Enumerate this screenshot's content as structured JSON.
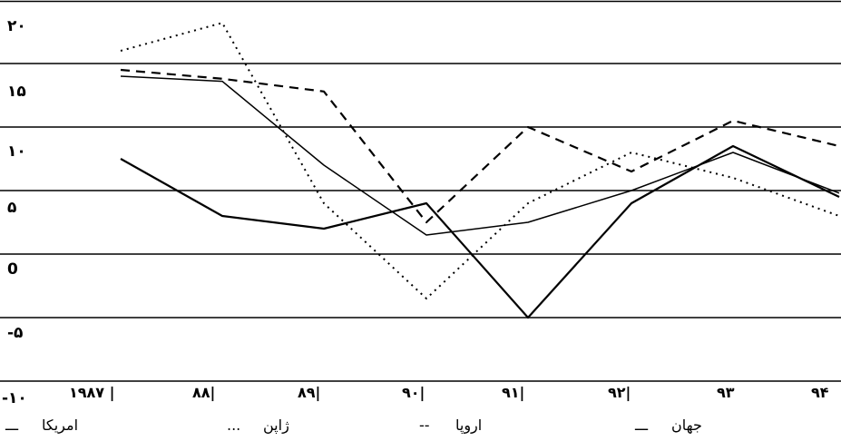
{
  "chart_data": {
    "type": "line",
    "title": "",
    "xlabel": "",
    "ylabel": "",
    "ylim": [
      -10,
      20
    ],
    "grid": "horizontal",
    "legend_position": "bottom",
    "x_tick_labels": [
      "۱۹۸۷ |",
      "۸۸|",
      "۸۹|",
      "۹۰|",
      "۹۱|",
      "۹۲|",
      "۹۳",
      "۹۴"
    ],
    "y_tick_labels": [
      {
        "value": 20,
        "label": "۲۰"
      },
      {
        "value": 15,
        "label": "۱۵"
      },
      {
        "value": 10,
        "label": "۱۰"
      },
      {
        "value": 5,
        "label": "۵"
      },
      {
        "value": 0,
        "label": "0"
      },
      {
        "value": -5,
        "label": "-۵"
      },
      {
        "value": -10,
        "label": "-۱۰"
      }
    ],
    "x": [
      1987,
      1988,
      1989,
      1990,
      1991,
      1992,
      1993,
      1994
    ],
    "series": [
      {
        "name": "جهان",
        "dash": "solid",
        "width": 2.2,
        "color": "#000000",
        "values": [
          7.5,
          3,
          2,
          4,
          -5,
          4,
          8.5,
          4.5
        ]
      },
      {
        "name": "اروپا",
        "dash": "dashed",
        "width": 2.2,
        "color": "#000000",
        "values": [
          14.5,
          13.8,
          12.8,
          2.5,
          10,
          6.5,
          10.5,
          8.5
        ]
      },
      {
        "name": "ژاپن",
        "dash": "dotted",
        "width": 2,
        "color": "#000000",
        "values": [
          16,
          18.2,
          4,
          -3.5,
          4,
          8,
          6,
          3
        ]
      },
      {
        "name": "امریکا",
        "dash": "solid",
        "width": 1.5,
        "color": "#000000",
        "values": [
          14,
          13.6,
          7,
          1.5,
          2.5,
          5,
          8,
          4.8
        ]
      }
    ],
    "legend": [
      {
        "label": "جهان",
        "marker": "ـــ"
      },
      {
        "label": "اروپا",
        "marker": "--"
      },
      {
        "label": "ژاپن",
        "marker": "..."
      },
      {
        "label": "امریکا",
        "marker": "ـــ"
      }
    ]
  }
}
